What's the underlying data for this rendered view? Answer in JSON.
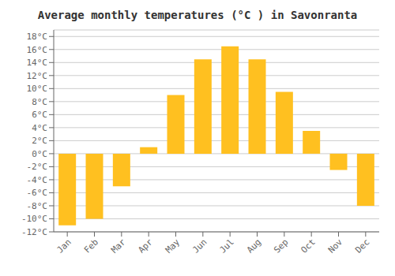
{
  "chart_data": {
    "type": "bar",
    "title": "Average monthly temperatures (°C ) in Savonranta",
    "categories": [
      "Jan",
      "Feb",
      "Mar",
      "Apr",
      "May",
      "Jun",
      "Jul",
      "Aug",
      "Sep",
      "Oct",
      "Nov",
      "Dec"
    ],
    "values": [
      -11,
      -10,
      -5,
      1,
      9,
      14.5,
      16.5,
      14.5,
      9.5,
      3.5,
      -2.5,
      -8
    ],
    "color": "#FFC020",
    "ylim": [
      -12,
      19
    ],
    "yticks": [
      {
        "value": -12,
        "label": "-12°C"
      },
      {
        "value": -10,
        "label": "-10°C"
      },
      {
        "value": -8,
        "label": "-8°C"
      },
      {
        "value": -6,
        "label": "-6°C"
      },
      {
        "value": -4,
        "label": "-4°C"
      },
      {
        "value": -2,
        "label": "-2°C"
      },
      {
        "value": 0,
        "label": "0°C"
      },
      {
        "value": 2,
        "label": "2°C"
      },
      {
        "value": 4,
        "label": "4°C"
      },
      {
        "value": 6,
        "label": "6°C"
      },
      {
        "value": 8,
        "label": "8°C"
      },
      {
        "value": 10,
        "label": "10°C"
      },
      {
        "value": 12,
        "label": "12°C"
      },
      {
        "value": 14,
        "label": "14°C"
      },
      {
        "value": 16,
        "label": "16°C"
      },
      {
        "value": 18,
        "label": "18°C"
      }
    ],
    "grid": true
  }
}
